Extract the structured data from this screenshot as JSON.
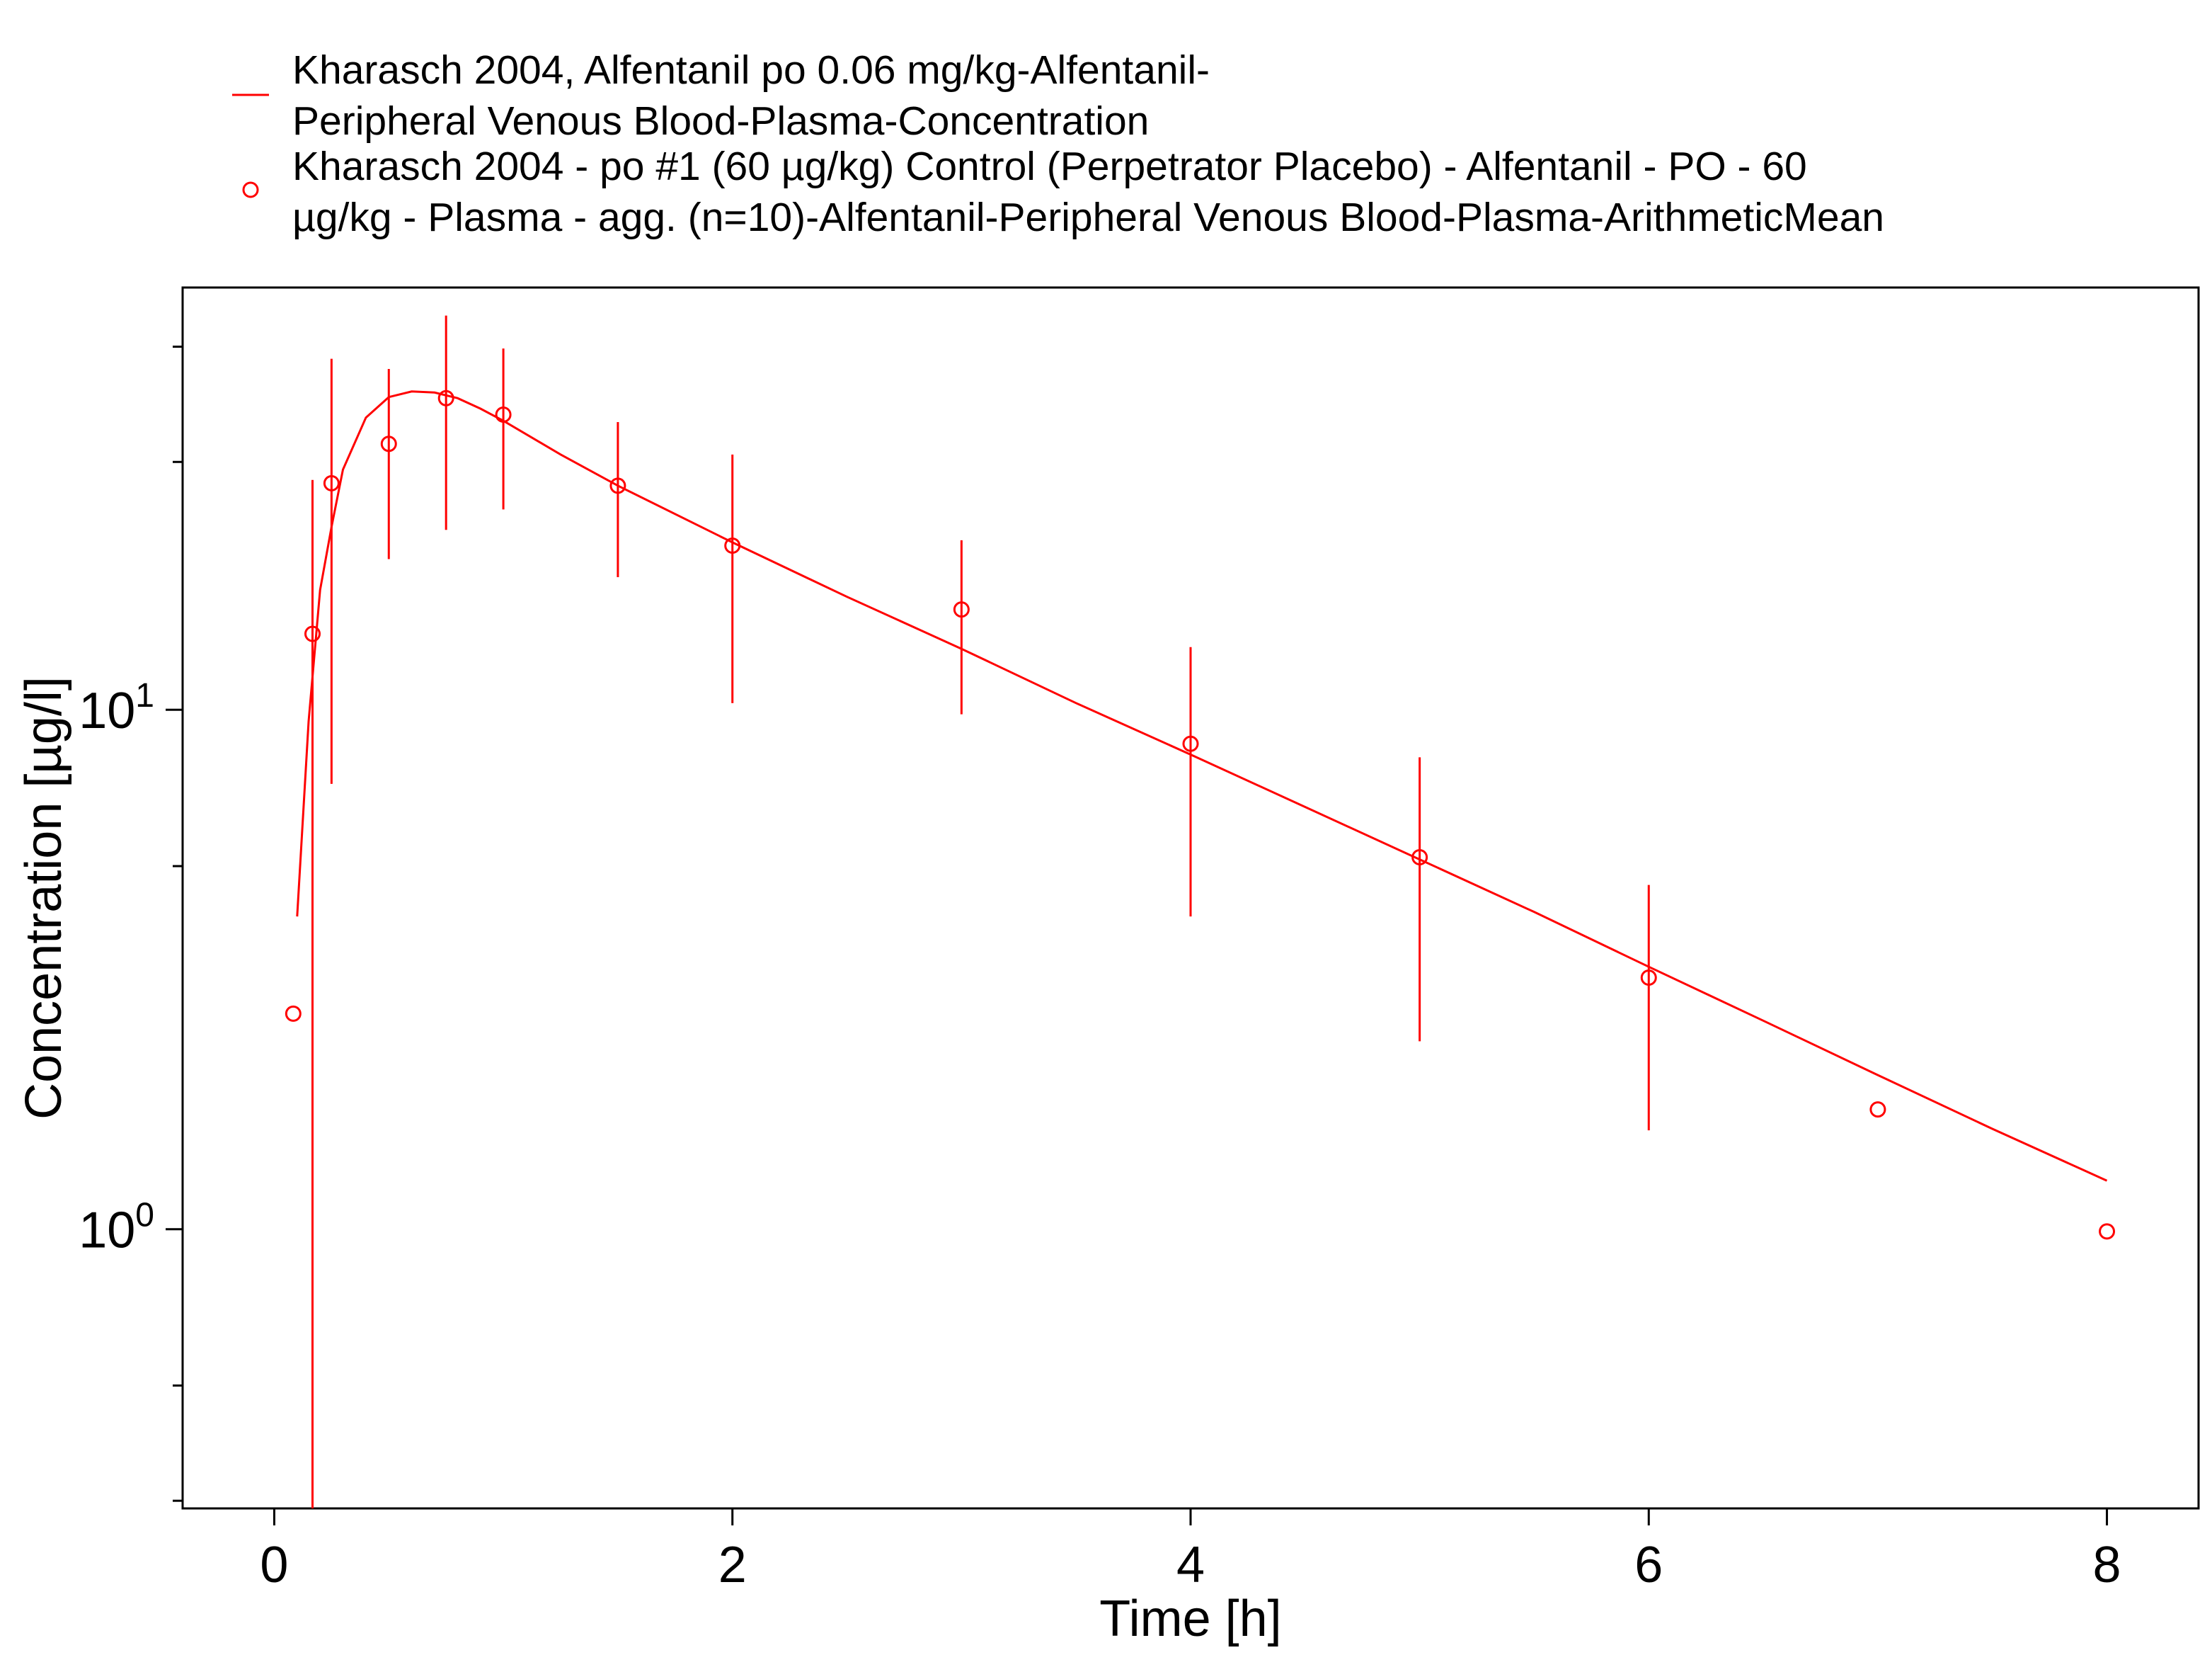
{
  "colors": {
    "series": "#ff0000",
    "axis": "#000000",
    "background": "#ffffff"
  },
  "chart_data": {
    "type": "line",
    "xlabel": "Time [h]",
    "ylabel": "Concentration [µg/l]",
    "xlim": [
      -0.4,
      8.4
    ],
    "ylim": [
      0.29,
      65
    ],
    "y_scale": "log",
    "grid": false,
    "legend_position": "top",
    "x_ticks": [
      {
        "value": 0,
        "label": "0"
      },
      {
        "value": 2,
        "label": "2"
      },
      {
        "value": 4,
        "label": "4"
      },
      {
        "value": 6,
        "label": "6"
      },
      {
        "value": 8,
        "label": "8"
      }
    ],
    "y_ticks_major": [
      {
        "value": 1,
        "base": "10",
        "exp": "0"
      },
      {
        "value": 10,
        "base": "10",
        "exp": "1"
      }
    ],
    "y_ticks_minor": [
      0.3,
      0.5,
      5,
      30,
      50
    ],
    "series": [
      {
        "name": "Kharasch 2004, Alfentanil po 0.06 mg/kg-Alfentanil-Peripheral Venous Blood-Plasma-Concentration",
        "legend_lines": [
          "Kharasch 2004, Alfentanil po 0.06 mg/kg-Alfentanil-",
          "Peripheral Venous Blood-Plasma-Concentration"
        ],
        "kind": "line",
        "x": [
          0.1,
          0.15,
          0.2,
          0.25,
          0.3,
          0.4,
          0.5,
          0.6,
          0.7,
          0.8,
          0.9,
          1.0,
          1.25,
          1.5,
          2.0,
          2.5,
          3.0,
          3.5,
          4.0,
          4.5,
          5.0,
          5.5,
          6.0,
          6.5,
          7.0,
          7.5,
          8.0
        ],
        "y": [
          4.0,
          9.5,
          17.0,
          22.5,
          29.0,
          36.5,
          40.0,
          41.0,
          40.8,
          39.8,
          38.0,
          36.0,
          31.0,
          27.0,
          21.0,
          16.5,
          13.1,
          10.3,
          8.2,
          6.5,
          5.15,
          4.08,
          3.2,
          2.52,
          1.98,
          1.56,
          1.24
        ]
      },
      {
        "name": "Kharasch 2004 - po #1 (60 µg/kg) Control (Perpetrator Placebo) - Alfentanil - PO - 60 µg/kg - Plasma - agg. (n=10)-Alfentanil-Peripheral Venous Blood-Plasma-ArithmeticMean",
        "legend_lines": [
          "Kharasch 2004 - po #1 (60 µg/kg) Control (Perpetrator Placebo) - Alfentanil - PO - 60",
          "µg/kg - Plasma - agg. (n=10)-Alfentanil-Peripheral Venous Blood-Plasma-ArithmeticMean"
        ],
        "kind": "scatter",
        "points": [
          {
            "x": 0.083,
            "y": 2.6
          },
          {
            "x": 0.167,
            "y": 14.0,
            "ylow": 0.29,
            "yhigh": 27.7
          },
          {
            "x": 0.25,
            "y": 27.3,
            "ylow": 7.2,
            "yhigh": 47.4
          },
          {
            "x": 0.5,
            "y": 32.5,
            "ylow": 19.5,
            "yhigh": 45.3
          },
          {
            "x": 0.75,
            "y": 39.8,
            "ylow": 22.2,
            "yhigh": 57.4
          },
          {
            "x": 1.0,
            "y": 37.0,
            "ylow": 24.3,
            "yhigh": 49.6
          },
          {
            "x": 1.5,
            "y": 27.0,
            "ylow": 18.0,
            "yhigh": 35.8
          },
          {
            "x": 2.0,
            "y": 20.7,
            "ylow": 10.3,
            "yhigh": 31.0
          },
          {
            "x": 3.0,
            "y": 15.6,
            "ylow": 9.8,
            "yhigh": 21.2
          },
          {
            "x": 4.0,
            "y": 8.6,
            "ylow": 4.0,
            "yhigh": 13.2
          },
          {
            "x": 5.0,
            "y": 5.2,
            "ylow": 2.3,
            "yhigh": 8.1
          },
          {
            "x": 6.0,
            "y": 3.05,
            "ylow": 1.55,
            "yhigh": 4.6
          },
          {
            "x": 7.0,
            "y": 1.7
          },
          {
            "x": 8.0,
            "y": 0.99
          }
        ]
      }
    ]
  }
}
